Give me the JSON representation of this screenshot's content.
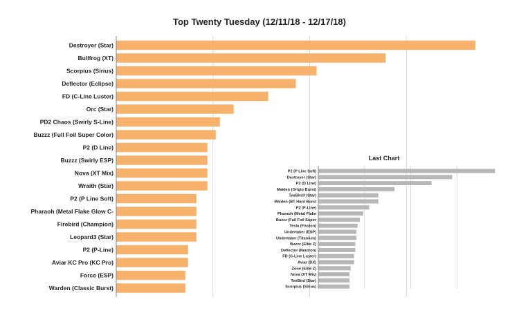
{
  "chart_data": [
    {
      "type": "bar",
      "orientation": "horizontal",
      "title": "Top Twenty Tuesday (12/11/18 - 12/17/18)",
      "categories": [
        "Destroyer (Star)",
        "Bullfrog (XT)",
        "Scorpius (Sirius)",
        "Deflector (Eclipse)",
        "FD (C-Line Luster)",
        "Orc (Star)",
        "PD2 Chaos (Swirly S-Line)",
        "Buzzz (Full Foil Super Color)",
        "P2 (D Line)",
        "Buzzz (Swirly ESP)",
        "Nova (XT Mix)",
        "Wraith (Star)",
        "P2 (P Line Soft)",
        "Pharaoh (Metal Flake Glow C-",
        "Firebird (Champion)",
        "Leopard3 (Star)",
        "P2 (P-Line)",
        "Aviar KC Pro (KC Pro)",
        "Force (ESP)",
        "Warden (Classic Burst)"
      ],
      "values": [
        26,
        19.5,
        14.5,
        13,
        11,
        8.5,
        7.5,
        7.2,
        6.6,
        6.6,
        6.6,
        6.6,
        5.8,
        5.8,
        5.8,
        5.8,
        5.2,
        5.2,
        5,
        5
      ],
      "xlim": [
        0,
        28
      ],
      "grid": true,
      "color": "#f6b26b"
    },
    {
      "type": "bar",
      "orientation": "horizontal",
      "title": "Last Chart",
      "categories": [
        "P2 (P Line Soft)",
        "Destroyer (Star)",
        "P2 (D Line)",
        "Maiden (Origio Burst)",
        "TeeBird3 (Star)",
        "Maiden (BT Hard Burst",
        "P2 (P-Line)",
        "Pharaoh (Metal Flake",
        "Buzzz (Full Foil Super",
        "Tesla (Fission)",
        "Undertaker (ESP)",
        "Undertaker (Titanium)",
        "Buzzz (Elite Z)",
        "Deflector (Neutron)",
        "FD (C-Line Luster)",
        "Aviar (DX)",
        "Zone (Elite Z)",
        "Nova (XT Mix)",
        "TeeBird (Star)",
        "Scorpius (Sirius)"
      ],
      "values": [
        15.3,
        11.6,
        9.8,
        6.6,
        5.2,
        5.2,
        4.4,
        3.9,
        3.6,
        3.4,
        3.3,
        3.3,
        3.2,
        3.2,
        3.1,
        3.1,
        2.8,
        2.7,
        2.7,
        2.7
      ],
      "xlim": [
        0,
        16
      ],
      "grid": true,
      "color": "#b7b7b7"
    }
  ]
}
